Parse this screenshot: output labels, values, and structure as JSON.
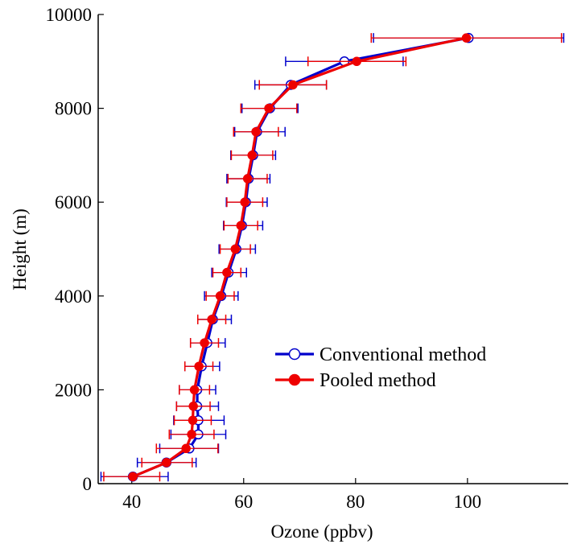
{
  "chart_data": {
    "type": "line",
    "xlabel": "Ozone (ppbv)",
    "ylabel": "Height (m)",
    "xlim": [
      34,
      118
    ],
    "ylim": [
      0,
      10000
    ],
    "x_ticks": [
      40,
      60,
      80,
      100
    ],
    "y_ticks": [
      0,
      2000,
      4000,
      6000,
      8000,
      10000
    ],
    "legend_position": "center-right",
    "grid": false,
    "series": [
      {
        "name": "Conventional method",
        "color": "#0000cc",
        "marker": "open-circle",
        "points": [
          {
            "x": 40.2,
            "y": 150,
            "xerr_low": 34.5,
            "xerr_high": 46.5
          },
          {
            "x": 46.2,
            "y": 450,
            "xerr_low": 41.0,
            "xerr_high": 51.5
          },
          {
            "x": 50.3,
            "y": 750,
            "xerr_low": 45.0,
            "xerr_high": 55.5
          },
          {
            "x": 51.9,
            "y": 1050,
            "xerr_low": 47.0,
            "xerr_high": 56.8
          },
          {
            "x": 51.9,
            "y": 1350,
            "xerr_low": 47.5,
            "xerr_high": 56.5
          },
          {
            "x": 51.7,
            "y": 1650,
            "xerr_low": 48.0,
            "xerr_high": 55.5
          },
          {
            "x": 51.7,
            "y": 2000,
            "xerr_low": 48.5,
            "xerr_high": 55.0
          },
          {
            "x": 52.5,
            "y": 2500,
            "xerr_low": 49.5,
            "xerr_high": 55.7
          },
          {
            "x": 53.5,
            "y": 3000,
            "xerr_low": 50.5,
            "xerr_high": 56.7
          },
          {
            "x": 54.5,
            "y": 3500,
            "xerr_low": 51.8,
            "xerr_high": 57.8
          },
          {
            "x": 56.0,
            "y": 4000,
            "xerr_low": 53.0,
            "xerr_high": 59.0
          },
          {
            "x": 57.3,
            "y": 4500,
            "xerr_low": 54.3,
            "xerr_high": 60.5
          },
          {
            "x": 58.7,
            "y": 5000,
            "xerr_low": 55.6,
            "xerr_high": 62.1
          },
          {
            "x": 59.7,
            "y": 5500,
            "xerr_low": 56.4,
            "xerr_high": 63.4
          },
          {
            "x": 60.4,
            "y": 6000,
            "xerr_low": 56.9,
            "xerr_high": 64.2
          },
          {
            "x": 60.9,
            "y": 6500,
            "xerr_low": 57.0,
            "xerr_high": 64.7
          },
          {
            "x": 61.7,
            "y": 7000,
            "xerr_low": 57.7,
            "xerr_high": 65.7
          },
          {
            "x": 62.4,
            "y": 7500,
            "xerr_low": 58.4,
            "xerr_high": 67.4
          },
          {
            "x": 64.7,
            "y": 8000,
            "xerr_low": 59.7,
            "xerr_high": 69.7
          },
          {
            "x": 68.4,
            "y": 8500,
            "xerr_low": 62.0,
            "xerr_high": 74.8
          },
          {
            "x": 78.0,
            "y": 9000,
            "xerr_low": 67.5,
            "xerr_high": 88.5
          },
          {
            "x": 100.2,
            "y": 9500,
            "xerr_low": 83.2,
            "xerr_high": 117.2
          }
        ]
      },
      {
        "name": "Pooled method",
        "color": "#ee0000",
        "marker": "filled-circle",
        "points": [
          {
            "x": 40.2,
            "y": 150,
            "xerr_low": 35.0,
            "xerr_high": 45.0
          },
          {
            "x": 46.2,
            "y": 450,
            "xerr_low": 41.8,
            "xerr_high": 50.8
          },
          {
            "x": 49.7,
            "y": 750,
            "xerr_low": 44.4,
            "xerr_high": 55.4
          },
          {
            "x": 50.7,
            "y": 1050,
            "xerr_low": 46.7,
            "xerr_high": 54.7
          },
          {
            "x": 50.9,
            "y": 1350,
            "xerr_low": 47.6,
            "xerr_high": 54.2
          },
          {
            "x": 51.0,
            "y": 1650,
            "xerr_low": 48.0,
            "xerr_high": 54.0
          },
          {
            "x": 51.2,
            "y": 2000,
            "xerr_low": 48.5,
            "xerr_high": 53.9
          },
          {
            "x": 52.0,
            "y": 2500,
            "xerr_low": 49.5,
            "xerr_high": 54.5
          },
          {
            "x": 53.0,
            "y": 3000,
            "xerr_low": 50.5,
            "xerr_high": 55.5
          },
          {
            "x": 54.3,
            "y": 3500,
            "xerr_low": 51.8,
            "xerr_high": 56.8
          },
          {
            "x": 55.8,
            "y": 4000,
            "xerr_low": 53.3,
            "xerr_high": 58.3
          },
          {
            "x": 57.0,
            "y": 4500,
            "xerr_low": 54.5,
            "xerr_high": 59.5
          },
          {
            "x": 58.5,
            "y": 5000,
            "xerr_low": 55.8,
            "xerr_high": 61.2
          },
          {
            "x": 59.5,
            "y": 5500,
            "xerr_low": 56.5,
            "xerr_high": 62.5
          },
          {
            "x": 60.2,
            "y": 6000,
            "xerr_low": 57.0,
            "xerr_high": 63.4
          },
          {
            "x": 60.7,
            "y": 6500,
            "xerr_low": 57.2,
            "xerr_high": 64.2
          },
          {
            "x": 61.5,
            "y": 7000,
            "xerr_low": 57.8,
            "xerr_high": 65.2
          },
          {
            "x": 62.2,
            "y": 7500,
            "xerr_low": 58.2,
            "xerr_high": 66.2
          },
          {
            "x": 64.5,
            "y": 8000,
            "xerr_low": 59.5,
            "xerr_high": 69.5
          },
          {
            "x": 68.8,
            "y": 8500,
            "xerr_low": 62.8,
            "xerr_high": 74.8
          },
          {
            "x": 80.2,
            "y": 9000,
            "xerr_low": 71.5,
            "xerr_high": 89.0
          },
          {
            "x": 99.8,
            "y": 9500,
            "xerr_low": 82.8,
            "xerr_high": 116.8
          }
        ]
      }
    ]
  }
}
